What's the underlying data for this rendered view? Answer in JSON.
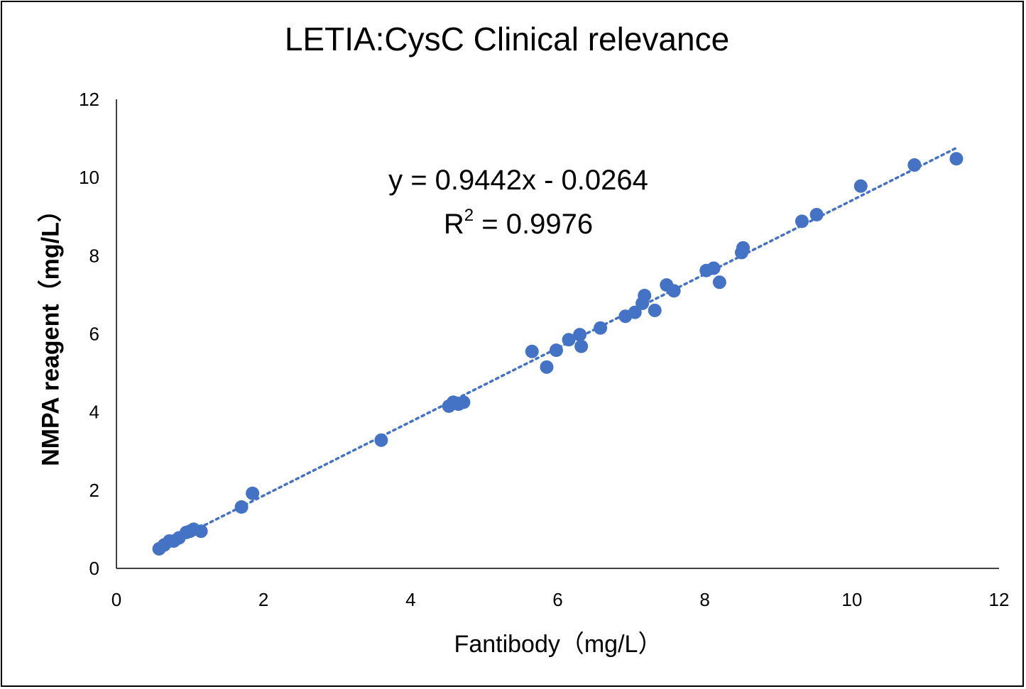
{
  "chart_data": {
    "type": "scatter",
    "title": "LETIA:CysC Clinical relevance",
    "xlabel": "Fantibody（mg/L）",
    "ylabel": "NMPA reagent（mg/L）",
    "xlim": [
      0,
      12
    ],
    "ylim": [
      0,
      12
    ],
    "xticks": [
      "0",
      "2",
      "4",
      "6",
      "8",
      "10",
      "12"
    ],
    "yticks": [
      "0",
      "2",
      "4",
      "6",
      "8",
      "10",
      "12"
    ],
    "grid": false,
    "legend": "none",
    "series": [
      {
        "color": "#4472C4",
        "points": [
          [
            0.58,
            0.5
          ],
          [
            0.65,
            0.6
          ],
          [
            0.72,
            0.7
          ],
          [
            0.78,
            0.7
          ],
          [
            0.85,
            0.78
          ],
          [
            0.95,
            0.92
          ],
          [
            1.0,
            0.95
          ],
          [
            1.05,
            1.0
          ],
          [
            1.15,
            0.95
          ],
          [
            1.7,
            1.57
          ],
          [
            1.85,
            1.92
          ],
          [
            3.6,
            3.28
          ],
          [
            4.52,
            4.15
          ],
          [
            4.58,
            4.25
          ],
          [
            4.65,
            4.2
          ],
          [
            4.72,
            4.25
          ],
          [
            5.65,
            5.55
          ],
          [
            5.85,
            5.15
          ],
          [
            5.98,
            5.58
          ],
          [
            6.15,
            5.85
          ],
          [
            6.3,
            5.98
          ],
          [
            6.32,
            5.68
          ],
          [
            6.58,
            6.15
          ],
          [
            6.92,
            6.45
          ],
          [
            7.05,
            6.55
          ],
          [
            7.15,
            6.78
          ],
          [
            7.18,
            6.98
          ],
          [
            7.32,
            6.6
          ],
          [
            7.48,
            7.25
          ],
          [
            7.58,
            7.1
          ],
          [
            8.02,
            7.62
          ],
          [
            8.12,
            7.68
          ],
          [
            8.2,
            7.32
          ],
          [
            8.5,
            8.08
          ],
          [
            8.52,
            8.2
          ],
          [
            9.32,
            8.88
          ],
          [
            9.52,
            9.05
          ],
          [
            10.12,
            9.78
          ],
          [
            10.85,
            10.32
          ],
          [
            11.42,
            10.48
          ]
        ]
      }
    ],
    "trendline": {
      "style": "dotted",
      "color": "#4472C4",
      "slope": 0.9442,
      "intercept": -0.0264,
      "x_range": [
        0.58,
        11.42
      ],
      "equation": "y = 0.9442x - 0.0264",
      "r2_prefix": "R",
      "r2_sup": "2",
      "r2_value": " = 0.9976"
    }
  }
}
